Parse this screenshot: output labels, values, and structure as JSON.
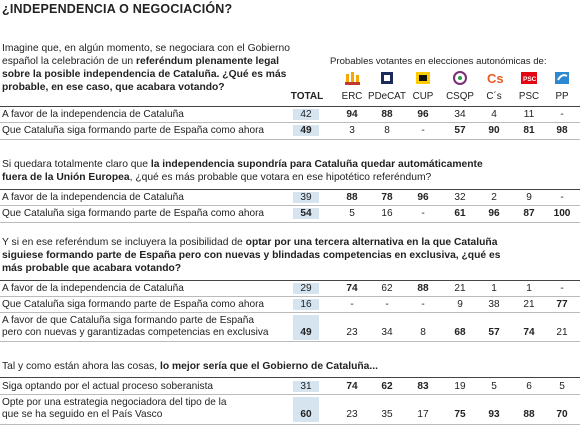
{
  "title": "¿INDEPENDENCIA O NEGOCIACIÓN?",
  "party_header": "Probables votantes en elecciones autonómicas de:",
  "total_label": "TOTAL",
  "parties": [
    {
      "name": "ERC",
      "color": "#f5a800"
    },
    {
      "name": "PDeCAT",
      "color": "#1d2b5c"
    },
    {
      "name": "CUP",
      "color": "#ffcc00"
    },
    {
      "name": "CSQP",
      "color": "#7a2e76"
    },
    {
      "name": "C´s",
      "color": "#ea5b24"
    },
    {
      "name": "PSC",
      "color": "#e30613"
    },
    {
      "name": "PP",
      "color": "#2c88d1"
    }
  ],
  "sections": [
    {
      "q_normal_1": "Imagine que, en algún momento, se negociara con el Gobierno",
      "q_normal_2": "español la celebración de un ",
      "q_bold_2": "referéndum plenamente legal",
      "q_bold_3": "sobre la posible independencia de Cataluña. ¿Qué es más",
      "q_bold_4": "probable, en ese caso, que acabara votando?",
      "rows": [
        {
          "label": "A favor de la independencia de Cataluña",
          "total": "42",
          "values": [
            "94",
            "88",
            "96",
            "34",
            "4",
            "11",
            "-"
          ],
          "bold": [
            true,
            true,
            true,
            false,
            false,
            false,
            false
          ]
        },
        {
          "label": "Que Cataluña siga formando parte de España como ahora",
          "total": "49",
          "values": [
            "3",
            "8",
            "-",
            "57",
            "90",
            "81",
            "98"
          ],
          "bold": [
            false,
            false,
            false,
            true,
            true,
            true,
            true
          ]
        }
      ]
    },
    {
      "q1_normal": "Si quedara totalmente claro que ",
      "q1_bold": "la independencia supondría para Cataluña quedar automáticamente",
      "q2_bold": "fuera de la Unión Europea",
      "q2_normal": ", ¿qué es más probable que votara en ese hipotético referéndum?",
      "rows": [
        {
          "label": "A favor de la independencia de Cataluña",
          "total": "39",
          "values": [
            "88",
            "78",
            "96",
            "32",
            "2",
            "9",
            "-"
          ],
          "bold": [
            true,
            true,
            true,
            false,
            false,
            false,
            false
          ]
        },
        {
          "label": "Que Cataluña siga formando parte de España como ahora",
          "total": "54",
          "values": [
            "5",
            "16",
            "-",
            "61",
            "96",
            "87",
            "100"
          ],
          "bold": [
            false,
            false,
            false,
            true,
            true,
            true,
            true
          ]
        }
      ]
    },
    {
      "q1_normal": "Y si en ese referéndum se incluyera la posibilidad de ",
      "q1_bold": "optar por una tercera alternativa en la que Cataluña",
      "q2_bold": "siguiese formando parte de España pero con nuevas y blindadas competencias en exclusiva, ¿qué es",
      "q3_bold": "más probable que acabara votando?",
      "rows": [
        {
          "label": "A favor de la independencia de Cataluña",
          "total": "29",
          "values": [
            "74",
            "62",
            "88",
            "21",
            "1",
            "1",
            "-"
          ],
          "bold": [
            true,
            false,
            true,
            false,
            false,
            false,
            false
          ]
        },
        {
          "label": "Que Cataluña siga formando parte de España como ahora",
          "total": "16",
          "values": [
            "-",
            "-",
            "-",
            "9",
            "38",
            "21",
            "77"
          ],
          "bold": [
            false,
            false,
            false,
            false,
            false,
            false,
            true
          ]
        },
        {
          "label1": "A favor de que Cataluña siga formando parte de España",
          "label2": "pero con nuevas y garantizadas competencias en exclusiva",
          "total": "49",
          "values": [
            "23",
            "34",
            "8",
            "68",
            "57",
            "74",
            "21"
          ],
          "bold": [
            false,
            false,
            false,
            true,
            true,
            true,
            false
          ]
        }
      ]
    },
    {
      "q1_normal": "Tal y como están ahora las cosas, ",
      "q1_bold": "lo mejor sería que el Gobierno de Cataluña...",
      "rows": [
        {
          "label": "Siga optando por el actual proceso soberanista",
          "total": "31",
          "values": [
            "74",
            "62",
            "83",
            "19",
            "5",
            "6",
            "5"
          ],
          "bold": [
            true,
            true,
            true,
            false,
            false,
            false,
            false
          ]
        },
        {
          "label1": "Opte por una estrategia negociadora del tipo de la",
          "label2": "que se ha seguido en el País Vasco",
          "total": "60",
          "values": [
            "23",
            "35",
            "17",
            "75",
            "93",
            "88",
            "70"
          ],
          "bold": [
            false,
            false,
            false,
            true,
            true,
            true,
            true
          ]
        }
      ]
    }
  ]
}
